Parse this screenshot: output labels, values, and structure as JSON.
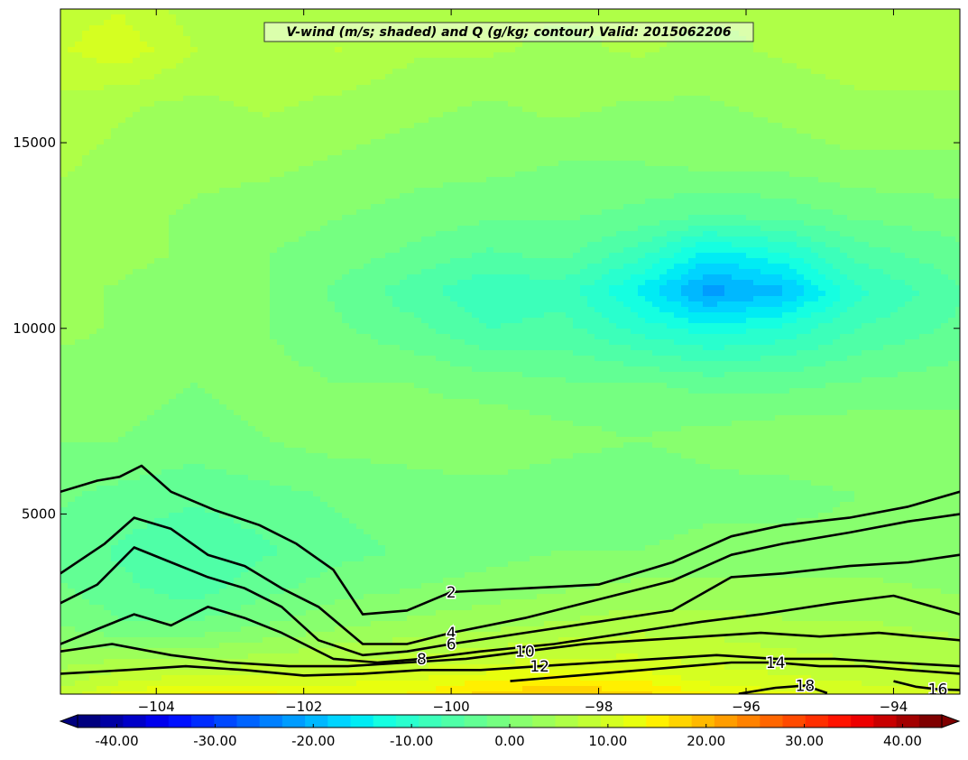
{
  "chart_data": {
    "type": "heatmap",
    "title": "V-wind (m/s; shaded) and Q (g/kg; contour) Valid: 2015062206",
    "xlabel": "",
    "ylabel": "",
    "xlim": [
      -105.3,
      -93.1
    ],
    "ylim": [
      150,
      18600
    ],
    "x_ticks": [
      -104,
      -102,
      -100,
      -98,
      -96,
      -94
    ],
    "x_tick_labels": [
      "−104",
      "−102",
      "−100",
      "−98",
      "−96",
      "−94"
    ],
    "y_ticks": [
      5000,
      10000,
      15000
    ],
    "y_tick_labels": [
      "5000",
      "10000",
      "15000"
    ],
    "grid": false,
    "colorbar": {
      "orientation": "horizontal",
      "extend": "both",
      "vmin": -44,
      "vmax": 44,
      "ticks": [
        -40,
        -30,
        -20,
        -10,
        0,
        10,
        20,
        30,
        40
      ],
      "tick_labels": [
        "-40.00",
        "-30.00",
        "-20.00",
        "-10.00",
        "0.00",
        "10.00",
        "20.00",
        "30.00",
        "40.00"
      ],
      "colors": [
        "#00007f",
        "#0000a3",
        "#0000c8",
        "#0000ed",
        "#0010ff",
        "#002cff",
        "#0048ff",
        "#0064ff",
        "#0080ff",
        "#009cff",
        "#00b8ff",
        "#00d4ff",
        "#00ecf4",
        "#15ffe1",
        "#29ffce",
        "#3cffba",
        "#4fffa7",
        "#62ff94",
        "#75ff81",
        "#88ff6e",
        "#9cff5a",
        "#afff47",
        "#c2ff34",
        "#d5ff21",
        "#e8ff0e",
        "#fff000",
        "#ffd400",
        "#ffb900",
        "#ff9d00",
        "#ff8200",
        "#ff6600",
        "#ff4a00",
        "#ff2f00",
        "#ff1300",
        "#ed0000",
        "#c80000",
        "#a30000",
        "#7f0000"
      ],
      "under_color": "#00007f",
      "over_color": "#7f0000"
    },
    "v_wind_field": {
      "x": [
        -105.3,
        -104.5,
        -103.5,
        -102.5,
        -101.5,
        -100.5,
        -99.5,
        -98.5,
        -97.5,
        -96.5,
        -95.5,
        -94.5,
        -93.1
      ],
      "y": [
        150,
        500,
        1000,
        2000,
        3000,
        4000,
        5500,
        7000,
        8500,
        10000,
        11000,
        12000,
        13000,
        14500,
        16000,
        17500,
        18600
      ],
      "values": [
        [
          8,
          12,
          14,
          14,
          13,
          14,
          17,
          18,
          17,
          14,
          12,
          11,
          10
        ],
        [
          6,
          9,
          11,
          11,
          11,
          12,
          14,
          15,
          14,
          11,
          10,
          9,
          8
        ],
        [
          4,
          5,
          5,
          6,
          7,
          8,
          9,
          10,
          10,
          9,
          8,
          7,
          6
        ],
        [
          0,
          -2,
          -2,
          0,
          2,
          3,
          4,
          5,
          6,
          6,
          5,
          5,
          4
        ],
        [
          -2,
          -4,
          -6,
          -3,
          -1,
          0,
          1,
          2,
          3,
          3,
          3,
          3,
          2
        ],
        [
          -3,
          -5,
          -7,
          -5,
          -3,
          -2,
          -1,
          0,
          0,
          1,
          1,
          1,
          0
        ],
        [
          -2,
          -3,
          -4,
          -3,
          -2,
          -1,
          -1,
          -2,
          -2,
          -1,
          -1,
          0,
          0
        ],
        [
          0,
          0,
          -1,
          0,
          1,
          1,
          2,
          1,
          0,
          1,
          2,
          2,
          1
        ],
        [
          1,
          1,
          0,
          1,
          0,
          0,
          -1,
          -2,
          -2,
          -3,
          -3,
          -2,
          -1
        ],
        [
          3,
          2,
          0,
          0,
          -2,
          -4,
          -7,
          -6,
          -10,
          -13,
          -11,
          -7,
          -4
        ],
        [
          3,
          2,
          1,
          0,
          -3,
          -6,
          -9,
          -8,
          -14,
          -22,
          -19,
          -10,
          -5
        ],
        [
          4,
          3,
          2,
          0,
          -1,
          -3,
          -5,
          -4,
          -8,
          -15,
          -12,
          -6,
          -3
        ],
        [
          4,
          3,
          2,
          1,
          0,
          -1,
          -2,
          -2,
          -3,
          -5,
          -4,
          -2,
          -1
        ],
        [
          5,
          4,
          3,
          3,
          2,
          1,
          1,
          0,
          0,
          1,
          1,
          2,
          2
        ],
        [
          6,
          5,
          4,
          5,
          4,
          3,
          2,
          3,
          2,
          2,
          3,
          4,
          4
        ],
        [
          9,
          11,
          7,
          6,
          7,
          5,
          5,
          4,
          5,
          4,
          5,
          6,
          6
        ],
        [
          8,
          9,
          6,
          6,
          6,
          5,
          5,
          5,
          5,
          5,
          5,
          6,
          6
        ]
      ]
    },
    "q_contours": [
      {
        "level": 2,
        "label": "2",
        "x": [
          -105.3,
          -104.8,
          -104.5,
          -104.2,
          -103.8,
          -103.2,
          -102.6,
          -102.1,
          -101.6,
          -101.2,
          -100.6,
          -100.0,
          -99.0,
          -98.0,
          -97.0,
          -96.2,
          -95.5,
          -94.6,
          -93.8,
          -93.1
        ],
        "y": [
          5600,
          5900,
          6000,
          6300,
          5600,
          5100,
          4700,
          4200,
          3500,
          2300,
          2400,
          2900,
          3000,
          3100,
          3700,
          4400,
          4700,
          4900,
          5200,
          5600
        ]
      },
      {
        "level": 4,
        "label": "4",
        "x": [
          -105.3,
          -104.7,
          -104.3,
          -103.8,
          -103.3,
          -102.8,
          -102.3,
          -101.8,
          -101.2,
          -100.6,
          -100.0,
          -99.0,
          -98.0,
          -97.0,
          -96.2,
          -95.5,
          -94.6,
          -93.8,
          -93.1
        ],
        "y": [
          3400,
          4200,
          4900,
          4600,
          3900,
          3600,
          3000,
          2500,
          1500,
          1500,
          1800,
          2200,
          2700,
          3200,
          3900,
          4200,
          4500,
          4800,
          5000
        ]
      },
      {
        "level": 6,
        "label": "6",
        "x": [
          -105.3,
          -104.8,
          -104.3,
          -103.8,
          -103.3,
          -102.8,
          -102.3,
          -101.8,
          -101.2,
          -100.6,
          -100.0,
          -99.0,
          -98.0,
          -97.0,
          -96.2,
          -95.5,
          -94.6,
          -93.8,
          -93.1
        ],
        "y": [
          2600,
          3100,
          4100,
          3700,
          3300,
          3000,
          2500,
          1600,
          1200,
          1300,
          1500,
          1800,
          2100,
          2400,
          3300,
          3400,
          3600,
          3700,
          3900
        ]
      },
      {
        "level": 8,
        "label": "8",
        "x": [
          -105.3,
          -104.8,
          -104.3,
          -103.8,
          -103.3,
          -102.8,
          -102.3,
          -101.6,
          -101.0,
          -100.4,
          -99.6,
          -98.6,
          -97.6,
          -96.6,
          -95.8,
          -94.8,
          -94.0,
          -93.1
        ],
        "y": [
          1500,
          1900,
          2300,
          2000,
          2500,
          2200,
          1800,
          1100,
          1000,
          1100,
          1300,
          1500,
          1800,
          2100,
          2300,
          2600,
          2800,
          2300
        ]
      },
      {
        "level": 10,
        "label": "10",
        "x": [
          -105.3,
          -104.6,
          -103.8,
          -103.0,
          -102.2,
          -101.4,
          -100.6,
          -99.8,
          -99.0,
          -98.2,
          -97.4,
          -96.6,
          -95.8,
          -95.0,
          -94.2,
          -93.1
        ],
        "y": [
          1300,
          1500,
          1200,
          1000,
          900,
          900,
          1000,
          1100,
          1300,
          1500,
          1600,
          1700,
          1800,
          1700,
          1800,
          1600
        ]
      },
      {
        "level": 12,
        "label": "12",
        "x": [
          -105.3,
          -104.4,
          -103.6,
          -102.8,
          -102.0,
          -101.2,
          -100.4,
          -99.6,
          -98.8,
          -98.0,
          -97.2,
          -96.4,
          -95.6,
          -94.8,
          -94.0,
          -93.1
        ],
        "y": [
          700,
          800,
          900,
          800,
          650,
          700,
          800,
          800,
          900,
          1000,
          1100,
          1200,
          1100,
          1100,
          1000,
          900
        ]
      },
      {
        "level": 14,
        "label": "14",
        "x": [
          -99.2,
          -98.6,
          -98.0,
          -97.4,
          -96.8,
          -96.2,
          -95.6,
          -95.0,
          -94.4,
          -93.8,
          -93.1
        ],
        "y": [
          500,
          600,
          700,
          800,
          900,
          1000,
          1000,
          900,
          900,
          800,
          700
        ]
      },
      {
        "level": 16,
        "label": "16",
        "x": [
          -94.0,
          -93.7,
          -93.4,
          -93.1
        ],
        "y": [
          500,
          350,
          280,
          260
        ]
      },
      {
        "level": 18,
        "label": "18",
        "x": [
          -96.1,
          -95.6,
          -95.2,
          -94.9
        ],
        "y": [
          160,
          320,
          380,
          180
        ]
      }
    ]
  }
}
